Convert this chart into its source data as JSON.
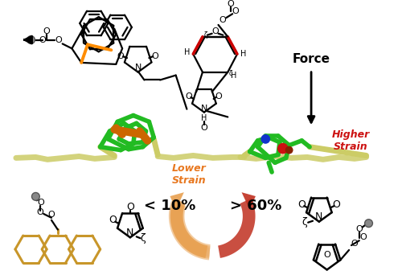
{
  "background_color": "#ffffff",
  "force_label": "Force",
  "lower_strain_label": "Lower\nStrain",
  "higher_strain_label": "Higher\nStrain",
  "pct_left": "< 10%",
  "pct_right": "> 60%",
  "arrow_color_force": "#000000",
  "arrow_color_left": "#E8A050",
  "arrow_color_right": "#C03020",
  "lower_strain_color": "#E87820",
  "higher_strain_color": "#CC1111",
  "anthracene_color": "#C8962A",
  "mol3d_green": "#22BB22",
  "mol3d_orange": "#CC6600",
  "mol3d_tan": "#CCCC66",
  "mol3d_blue": "#1133CC",
  "mol3d_red": "#CC1111",
  "mol3d_darkred": "#882200",
  "highlight_orange": "#FF8C00",
  "highlight_red": "#CC0000",
  "gray_circle": "#888888",
  "black": "#000000"
}
